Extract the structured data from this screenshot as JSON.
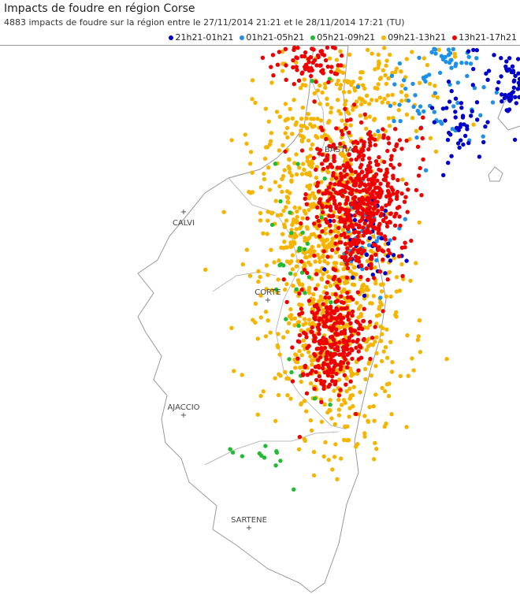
{
  "header": {
    "title": "Impacts de foudre en région Corse",
    "subtitle": "4883 impacts de foudre sur la région entre le 27/11/2014 21:21 et le 28/11/2014 17:21 (TU)"
  },
  "legend": [
    {
      "label": "21h21-01h21",
      "color": "#0000c8"
    },
    {
      "label": "01h21-05h21",
      "color": "#1e90e6"
    },
    {
      "label": "05h21-09h21",
      "color": "#22bb33"
    },
    {
      "label": "09h21-13h21",
      "color": "#f5b400"
    },
    {
      "label": "13h21-17h21",
      "color": "#ee0000"
    }
  ],
  "map": {
    "cities": [
      {
        "label": "BASTIA"
      },
      {
        "label": "CALVI"
      },
      {
        "label": "CORTE"
      },
      {
        "label": "AJACCIO"
      },
      {
        "label": "SARTENE"
      }
    ]
  }
}
